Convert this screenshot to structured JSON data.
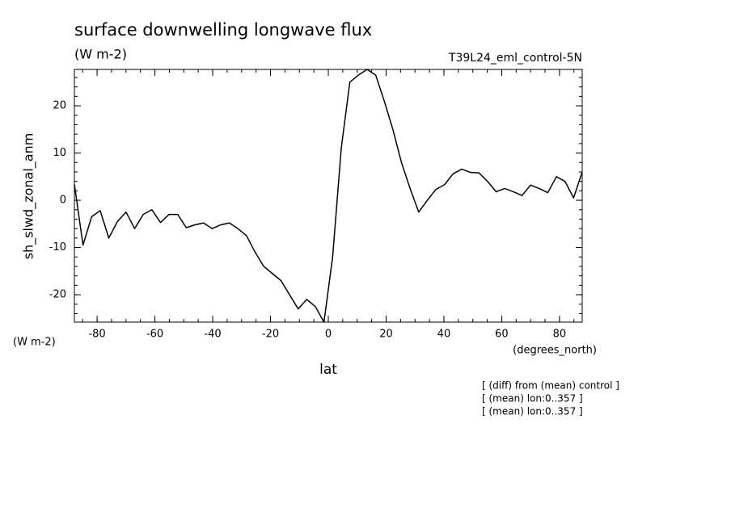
{
  "chart_data": {
    "type": "line",
    "title": "surface downwelling longwave flux",
    "units_label": "(W m-2)",
    "dataset_label": "T39L24_eml_control-5N",
    "y_axis_label": "sh_slwd_zonal_anm",
    "y_units": "(W m-2)",
    "x_units": "(degrees_north)",
    "x_axis_label": "lat",
    "notes": [
      "[ (diff) from (mean) control ]",
      "[ (mean) lon:0..357 ]",
      "[ (mean) lon:0..357 ]"
    ],
    "x": [
      -87.86,
      -84.88,
      -81.9,
      -78.93,
      -75.95,
      -72.97,
      -69.99,
      -67.01,
      -64.04,
      -61.06,
      -58.08,
      -55.1,
      -52.12,
      -49.15,
      -46.17,
      -43.19,
      -40.21,
      -37.23,
      -34.26,
      -31.28,
      -28.3,
      -25.32,
      -22.34,
      -19.37,
      -16.39,
      -13.41,
      -10.43,
      -7.45,
      -4.48,
      -1.5,
      1.5,
      4.48,
      7.45,
      10.43,
      13.41,
      16.39,
      19.37,
      22.34,
      25.32,
      28.3,
      31.28,
      34.26,
      37.23,
      40.21,
      43.19,
      46.17,
      49.15,
      52.12,
      55.1,
      58.08,
      61.06,
      64.04,
      67.01,
      69.99,
      72.97,
      75.95,
      78.93,
      81.9,
      84.88,
      87.86
    ],
    "series": [
      {
        "name": "sh_slwd_zonal_anm",
        "color": "#000000",
        "values": [
          3.4,
          -9.5,
          -3.5,
          -2.2,
          -8,
          -4.5,
          -2.5,
          -6,
          -3,
          -2,
          -4.7,
          -3,
          -3,
          -5.8,
          -5.2,
          -4.8,
          -6,
          -5.2,
          -4.8,
          -6,
          -7.5,
          -11,
          -14,
          -15.5,
          -17,
          -20,
          -23,
          -21,
          -22.5,
          -25.8,
          -12,
          11,
          25,
          26.5,
          27.7,
          26.5,
          21,
          15,
          8,
          2.5,
          -2.5,
          0,
          2.3,
          3.3,
          5.6,
          6.6,
          5.9,
          5.8,
          4,
          1.8,
          2.5,
          1.8,
          1,
          3.2,
          2.5,
          1.6,
          5,
          4,
          0.5,
          6
        ]
      }
    ],
    "xlim": [
      -87.86,
      87.86
    ],
    "xticks": [
      -80,
      -60,
      -40,
      -20,
      0,
      20,
      40,
      60,
      80
    ],
    "ylim": [
      -25.8,
      27.7
    ],
    "yticks": [
      -20,
      -10,
      0,
      10,
      20
    ],
    "grid": false
  }
}
